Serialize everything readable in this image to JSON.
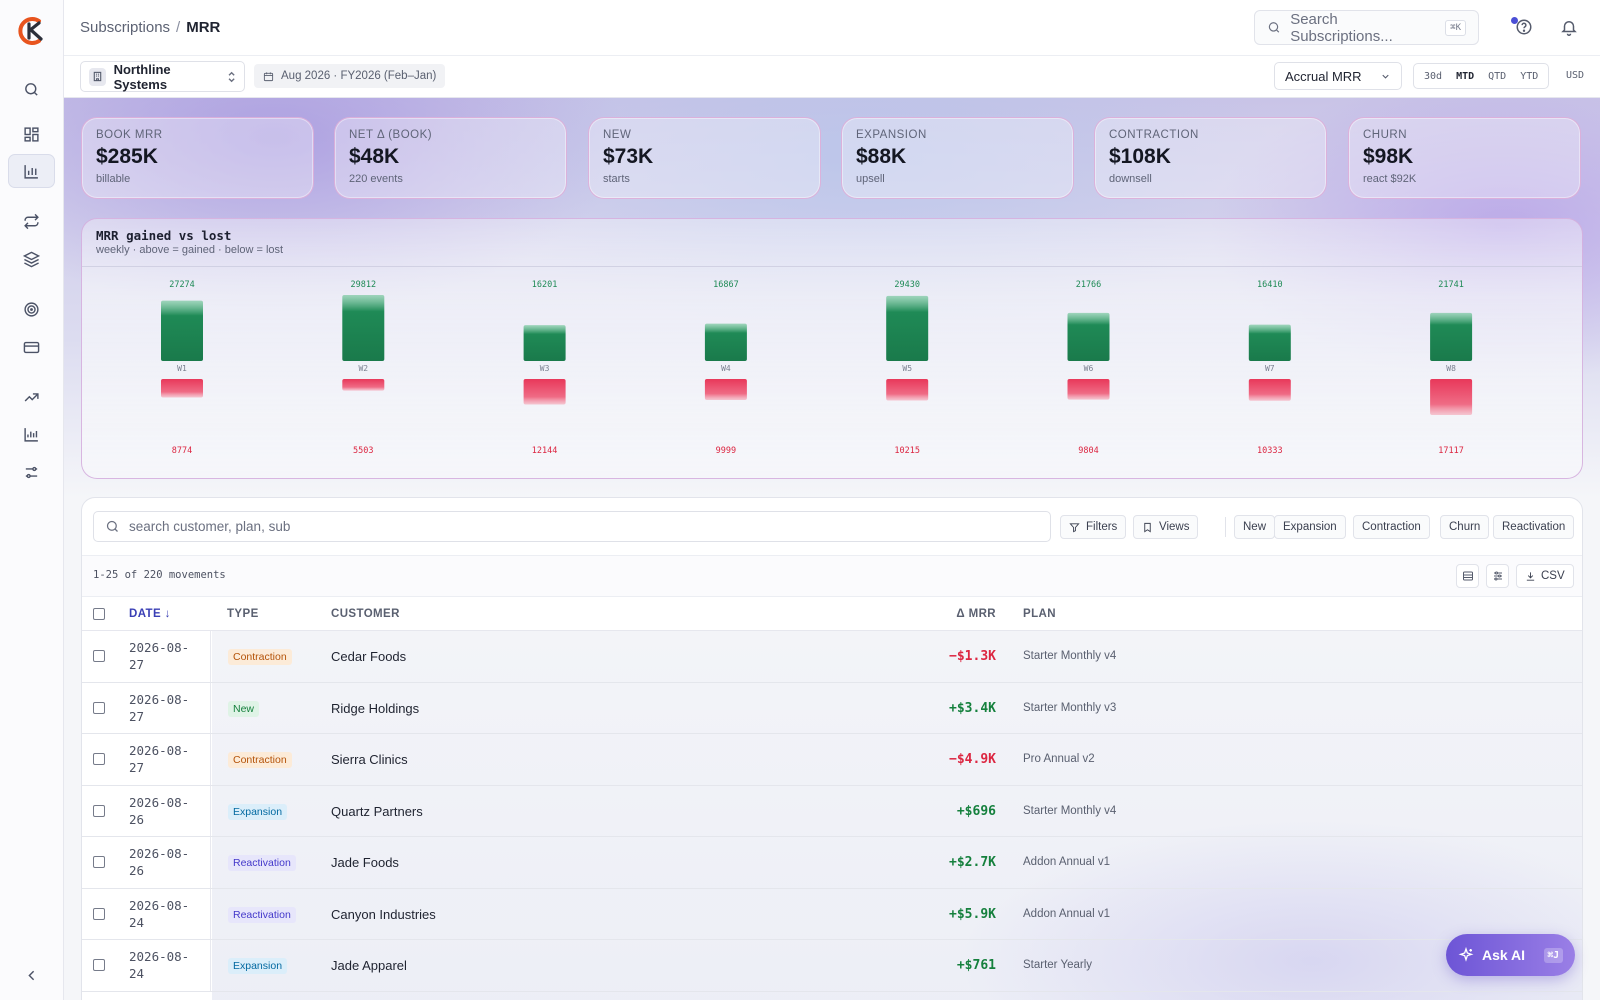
{
  "breadcrumb": {
    "parent": "Subscriptions",
    "separator": "/",
    "current": "MRR"
  },
  "search": {
    "placeholder": "Search Subscriptions...",
    "shortcut": "⌘K"
  },
  "toolbar": {
    "workspace": "Northline Systems",
    "period": "Aug 2026 · FY2026 (Feb–Jan)",
    "metric": "Accrual MRR",
    "ranges": [
      "30d",
      "MTD",
      "QTD",
      "YTD"
    ],
    "active_range": "MTD",
    "currency": "USD"
  },
  "kpis": [
    {
      "label": "BOOK MRR",
      "value": "$285K",
      "sub": "billable"
    },
    {
      "label": "NET Δ (BOOK)",
      "value": "$48K",
      "sub": "220 events"
    },
    {
      "label": "NEW",
      "value": "$73K",
      "sub": "starts"
    },
    {
      "label": "EXPANSION",
      "value": "$88K",
      "sub": "upsell"
    },
    {
      "label": "CONTRACTION",
      "value": "$108K",
      "sub": "downsell"
    },
    {
      "label": "CHURN",
      "value": "$98K",
      "sub": "react $92K"
    }
  ],
  "chart": {
    "title": "MRR gained vs lost",
    "subtitle": "weekly · above = gained · below = lost"
  },
  "chart_data": {
    "type": "bar",
    "categories": [
      "W1",
      "W2",
      "W3",
      "W4",
      "W5",
      "W6",
      "W7",
      "W8"
    ],
    "series": [
      {
        "values": [
          27274,
          29812,
          16201,
          16867,
          29430,
          21766,
          16410,
          21741
        ]
      },
      {
        "values": [
          8774,
          5503,
          12144,
          9999,
          10215,
          9804,
          10333,
          17117
        ]
      }
    ],
    "colors": {
      "gained": "#1f8a56",
      "lost": "#e8385a"
    },
    "title": "MRR gained vs lost",
    "subtitle": "weekly · above = gained · below = lost"
  },
  "table": {
    "search_placeholder": "search customer, plan, sub",
    "filters_label": "Filters",
    "views_label": "Views",
    "type_filters": [
      "New",
      "Expansion",
      "Contraction",
      "Churn",
      "Reactivation"
    ],
    "count_text": "1-25 of 220 movements",
    "csv_label": "CSV",
    "columns": {
      "date": "DATE",
      "type": "TYPE",
      "customer": "CUSTOMER",
      "delta": "Δ MRR",
      "plan": "PLAN"
    },
    "rows": [
      {
        "date_a": "2026-08-",
        "date_b": "27",
        "type": "Contraction",
        "customer": "Cedar Foods",
        "delta": "−$1.3K",
        "sign": "neg",
        "plan": "Starter Monthly v4"
      },
      {
        "date_a": "2026-08-",
        "date_b": "27",
        "type": "New",
        "customer": "Ridge Holdings",
        "delta": "+$3.4K",
        "sign": "pos",
        "plan": "Starter Monthly v3"
      },
      {
        "date_a": "2026-08-",
        "date_b": "27",
        "type": "Contraction",
        "customer": "Sierra Clinics",
        "delta": "−$4.9K",
        "sign": "neg",
        "plan": "Pro Annual v2"
      },
      {
        "date_a": "2026-08-",
        "date_b": "26",
        "type": "Expansion",
        "customer": "Quartz Partners",
        "delta": "+$696",
        "sign": "pos",
        "plan": "Starter Monthly v4"
      },
      {
        "date_a": "2026-08-",
        "date_b": "26",
        "type": "Reactivation",
        "customer": "Jade Foods",
        "delta": "+$2.7K",
        "sign": "pos",
        "plan": "Addon Annual v1"
      },
      {
        "date_a": "2026-08-",
        "date_b": "24",
        "type": "Reactivation",
        "customer": "Canyon Industries",
        "delta": "+$5.9K",
        "sign": "pos",
        "plan": "Addon Annual v1"
      },
      {
        "date_a": "2026-08-",
        "date_b": "24",
        "type": "Expansion",
        "customer": "Jade Apparel",
        "delta": "+$761",
        "sign": "pos",
        "plan": "Starter Yearly"
      }
    ]
  },
  "ask_ai": {
    "label": "Ask AI",
    "shortcut": "⌘J"
  },
  "sidebar": {
    "items": [
      "search-icon",
      "dashboard-icon",
      "bar-chart-icon",
      "repeat-icon",
      "layers-icon",
      "target-icon",
      "credit-card-icon",
      "trending-up-icon",
      "analytics-icon",
      "sliders-icon"
    ],
    "active": "bar-chart-icon"
  }
}
